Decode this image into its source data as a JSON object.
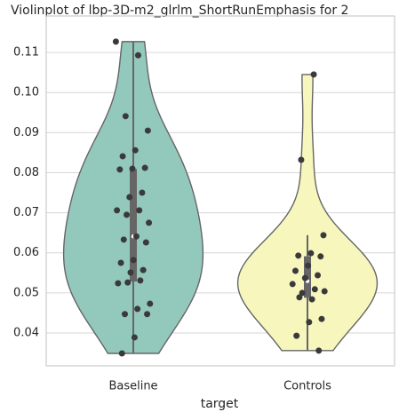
{
  "chart_data": {
    "type": "violin",
    "title": "Violinplot of lbp-3D-m2_glrlm_ShortRunEmphasis for 2",
    "xlabel": "target",
    "categories": [
      "Baseline",
      "Controls"
    ],
    "series": [
      {
        "name": "Baseline",
        "color": "#93c8bd",
        "values": [
          0.1127,
          0.1093,
          0.0941,
          0.0905,
          0.0856,
          0.0841,
          0.0812,
          0.081,
          0.0808,
          0.075,
          0.0739,
          0.0706,
          0.0706,
          0.0695,
          0.0675,
          0.0641,
          0.0633,
          0.0626,
          0.0582,
          0.0575,
          0.0557,
          0.0551,
          0.0524,
          0.0531,
          0.0526,
          0.0473,
          0.046,
          0.0447,
          0.0447,
          0.0389,
          0.0349
        ]
      },
      {
        "name": "Controls",
        "color": "#f6f6bd",
        "values": [
          0.1045,
          0.0832,
          0.0644,
          0.0599,
          0.0593,
          0.0591,
          0.0568,
          0.0555,
          0.0544,
          0.0537,
          0.0522,
          0.0509,
          0.05,
          0.0504,
          0.0484,
          0.0489,
          0.0435,
          0.0427,
          0.0393,
          0.0356
        ]
      }
    ],
    "ylim": [
      0.0318,
      0.1191
    ],
    "yticks": [
      0.04,
      0.05,
      0.06,
      0.07,
      0.08,
      0.09,
      {
        "value": 0.1,
        "label": "0.10"
      },
      0.11
    ],
    "grid": true
  }
}
